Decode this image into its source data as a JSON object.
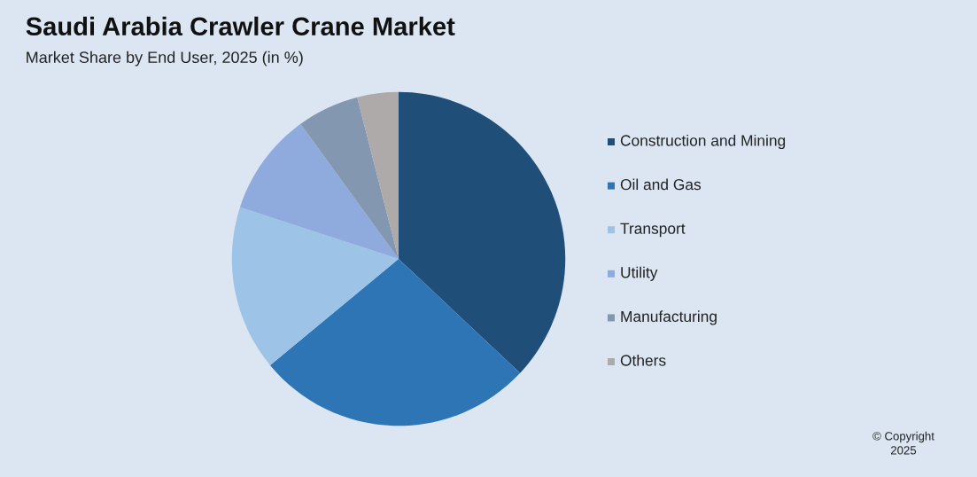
{
  "chart_data": {
    "type": "pie",
    "title": "Saudi Arabia Crawler Crane Market",
    "subtitle": "Market Share by End User, 2025 (in %)",
    "categories": [
      "Construction and Mining",
      "Oil and Gas",
      "Transport",
      "Utility",
      "Manufacturing",
      "Others"
    ],
    "values": [
      37,
      27,
      16,
      10,
      6,
      4
    ],
    "colors": [
      "#1f4e79",
      "#2e75b6",
      "#9dc3e6",
      "#8faadc",
      "#8497b0",
      "#aeaaaa"
    ],
    "legend": "right",
    "annotations": [
      "© Copyright",
      "2025"
    ]
  }
}
